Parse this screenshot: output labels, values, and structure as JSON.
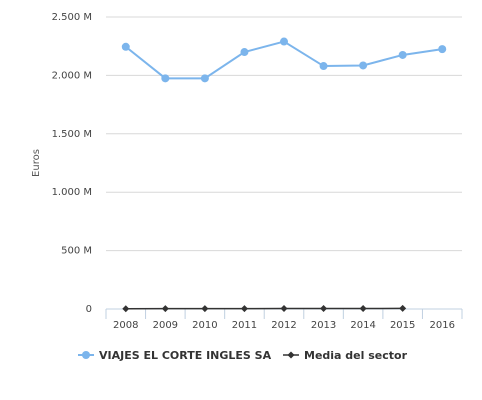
{
  "chart_data": {
    "type": "line",
    "xlabel": "",
    "ylabel": "Euros",
    "ylim": [
      0,
      2500
    ],
    "grid": true,
    "legend_position": "bottom",
    "x": [
      "2008",
      "2009",
      "2010",
      "2011",
      "2012",
      "2013",
      "2014",
      "2015",
      "2016"
    ],
    "y_ticks": [
      {
        "value": 0,
        "label": "0"
      },
      {
        "value": 500,
        "label": "500 M"
      },
      {
        "value": 1000,
        "label": "1.000 M"
      },
      {
        "value": 1500,
        "label": "1.500 M"
      },
      {
        "value": 2000,
        "label": "2.000 M"
      },
      {
        "value": 2500,
        "label": "2.500 M"
      }
    ],
    "series": [
      {
        "name": "VIAJES EL CORTE INGLES SA",
        "color": "#7cb5ec",
        "marker": "circle",
        "values": [
          2245,
          1975,
          1975,
          2200,
          2290,
          2080,
          2085,
          2175,
          2225
        ]
      },
      {
        "name": "Media del sector",
        "color": "#333333",
        "marker": "diamond",
        "values": [
          2,
          3,
          3,
          3,
          4,
          4,
          4,
          5,
          null
        ]
      }
    ]
  }
}
